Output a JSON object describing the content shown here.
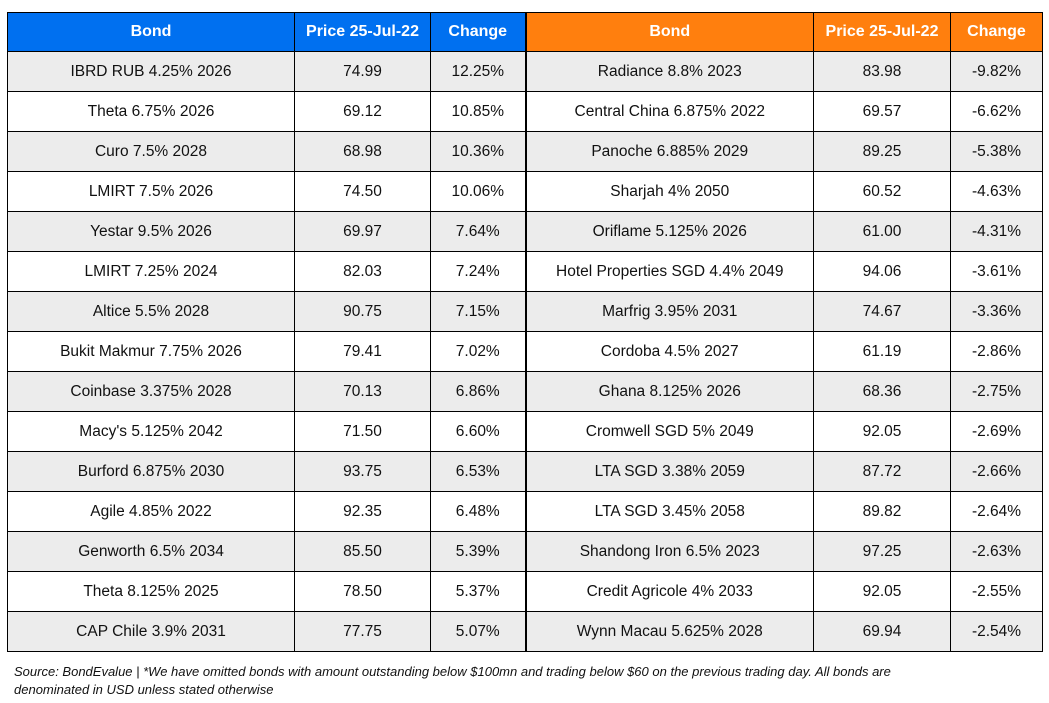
{
  "headers": {
    "left": [
      "Bond",
      "Price 25-Jul-22",
      "Change"
    ],
    "right": [
      "Bond",
      "Price 25-Jul-22",
      "Change"
    ]
  },
  "rows": [
    {
      "l_bond": "IBRD RUB 4.25% 2026",
      "l_price": "74.99",
      "l_change": "12.25%",
      "r_bond": "Radiance 8.8% 2023",
      "r_price": "83.98",
      "r_change": "-9.82%"
    },
    {
      "l_bond": "Theta 6.75% 2026",
      "l_price": "69.12",
      "l_change": "10.85%",
      "r_bond": "Central China 6.875% 2022",
      "r_price": "69.57",
      "r_change": "-6.62%"
    },
    {
      "l_bond": "Curo 7.5% 2028",
      "l_price": "68.98",
      "l_change": "10.36%",
      "r_bond": "Panoche 6.885% 2029",
      "r_price": "89.25",
      "r_change": "-5.38%"
    },
    {
      "l_bond": "LMIRT 7.5% 2026",
      "l_price": "74.50",
      "l_change": "10.06%",
      "r_bond": "Sharjah 4% 2050",
      "r_price": "60.52",
      "r_change": "-4.63%"
    },
    {
      "l_bond": "Yestar 9.5% 2026",
      "l_price": "69.97",
      "l_change": "7.64%",
      "r_bond": "Oriflame 5.125% 2026",
      "r_price": "61.00",
      "r_change": "-4.31%"
    },
    {
      "l_bond": "LMIRT 7.25% 2024",
      "l_price": "82.03",
      "l_change": "7.24%",
      "r_bond": "Hotel Properties SGD 4.4% 2049",
      "r_price": "94.06",
      "r_change": "-3.61%"
    },
    {
      "l_bond": "Altice 5.5% 2028",
      "l_price": "90.75",
      "l_change": "7.15%",
      "r_bond": "Marfrig 3.95% 2031",
      "r_price": "74.67",
      "r_change": "-3.36%"
    },
    {
      "l_bond": "Bukit Makmur 7.75% 2026",
      "l_price": "79.41",
      "l_change": "7.02%",
      "r_bond": "Cordoba 4.5% 2027",
      "r_price": "61.19",
      "r_change": "-2.86%"
    },
    {
      "l_bond": "Coinbase 3.375% 2028",
      "l_price": "70.13",
      "l_change": "6.86%",
      "r_bond": "Ghana 8.125% 2026",
      "r_price": "68.36",
      "r_change": "-2.75%"
    },
    {
      "l_bond": "Macy's 5.125% 2042",
      "l_price": "71.50",
      "l_change": "6.60%",
      "r_bond": "Cromwell SGD 5% 2049",
      "r_price": "92.05",
      "r_change": "-2.69%"
    },
    {
      "l_bond": "Burford 6.875% 2030",
      "l_price": "93.75",
      "l_change": "6.53%",
      "r_bond": "LTA SGD 3.38% 2059",
      "r_price": "87.72",
      "r_change": "-2.66%"
    },
    {
      "l_bond": "Agile 4.85% 2022",
      "l_price": "92.35",
      "l_change": "6.48%",
      "r_bond": "LTA SGD 3.45% 2058",
      "r_price": "89.82",
      "r_change": "-2.64%"
    },
    {
      "l_bond": "Genworth 6.5% 2034",
      "l_price": "85.50",
      "l_change": "5.39%",
      "r_bond": "Shandong Iron 6.5% 2023",
      "r_price": "97.25",
      "r_change": "-2.63%"
    },
    {
      "l_bond": "Theta 8.125% 2025",
      "l_price": "78.50",
      "l_change": "5.37%",
      "r_bond": "Credit Agricole 4% 2033",
      "r_price": "92.05",
      "r_change": "-2.55%"
    },
    {
      "l_bond": "CAP Chile 3.9% 2031",
      "l_price": "77.75",
      "l_change": "5.07%",
      "r_bond": "Wynn Macau 5.625% 2028",
      "r_price": "69.94",
      "r_change": "-2.54%"
    }
  ],
  "footer": {
    "line1": "Source: BondEvalue | *We have omitted bonds with amount outstanding below $100mn and trading below $60 on the previous trading day. All bonds are",
    "line2": "denominated in USD unless stated otherwise"
  },
  "colors": {
    "header_left": "#0070f0",
    "header_right": "#ff7f0e",
    "row_alt": "#ececec"
  }
}
